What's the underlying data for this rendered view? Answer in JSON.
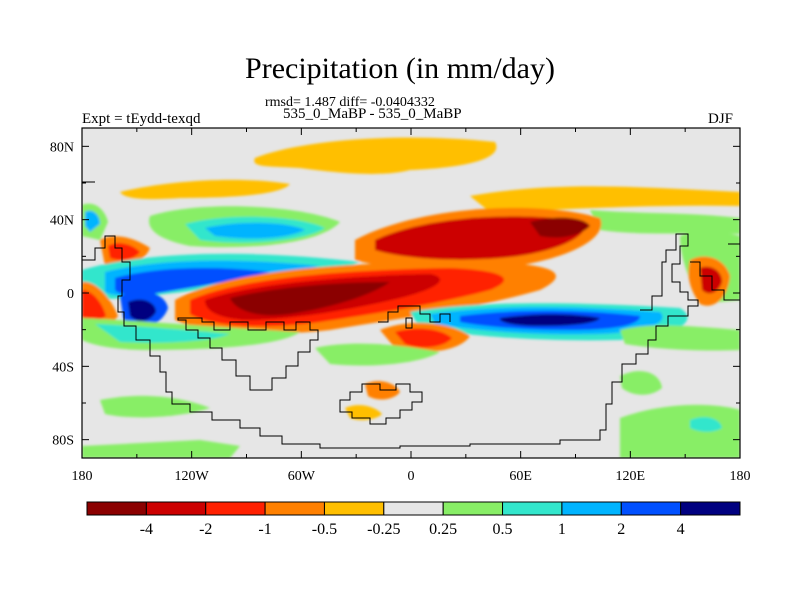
{
  "title": "Precipitation (in mm/day)",
  "stats": "rmsd= 1.487 diff= -0.0404332",
  "subtitle": "535_0_MaBP - 535_0_MaBP",
  "expt_label": "Expt = tEydd-texqd",
  "season": "DJF",
  "map": {
    "lon_ticks": [
      "180",
      "120W",
      "60W",
      "0",
      "60E",
      "120E",
      "180"
    ],
    "lat_ticks": [
      "80N",
      "40N",
      "0",
      "40S",
      "80S"
    ],
    "lon_range": [
      -180,
      180
    ],
    "lat_range": [
      -90,
      90
    ],
    "background_color": "#e6e6e6",
    "coastline_color": "#000000"
  },
  "colorbar": {
    "labels": [
      "-4",
      "-2",
      "-1",
      "-0.5",
      "-0.25",
      "0.25",
      "0.5",
      "1",
      "2",
      "4"
    ],
    "colors": [
      "#8b0000",
      "#cc0000",
      "#ff2000",
      "#ff8000",
      "#ffbf00",
      "#e6e6e6",
      "#88ee66",
      "#33e6cc",
      "#00b4ff",
      "#0050ff",
      "#000080"
    ]
  }
}
